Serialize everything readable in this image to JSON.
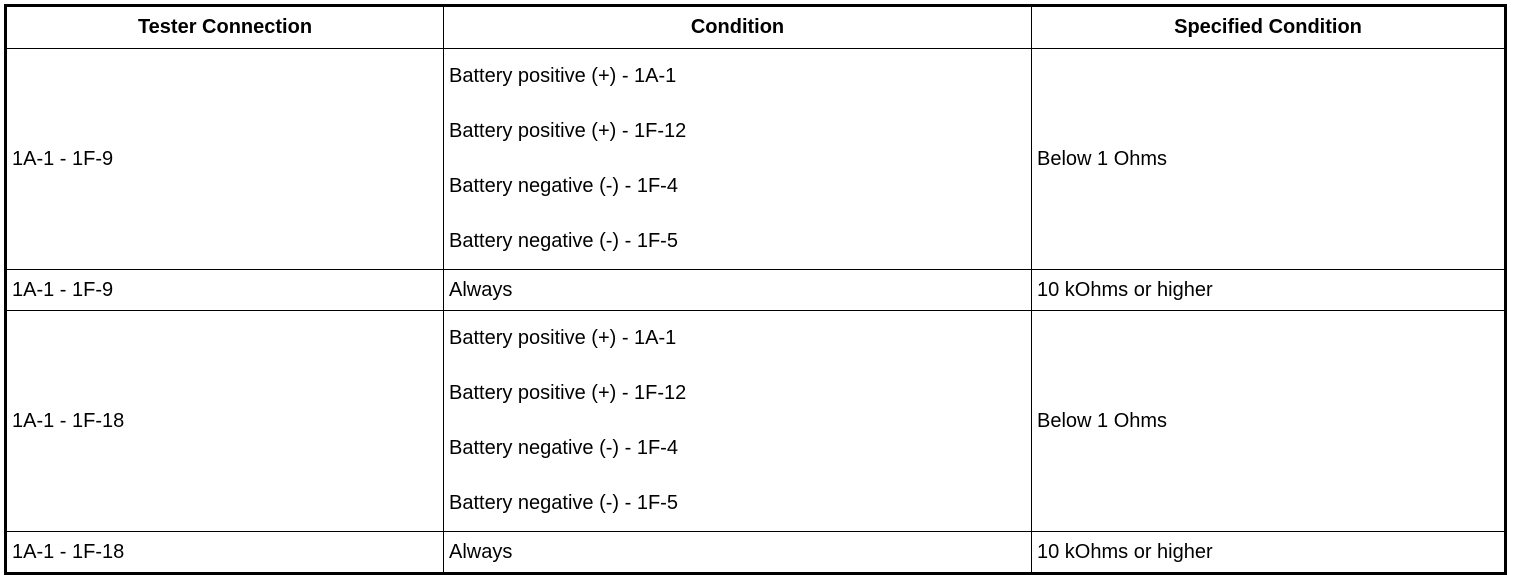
{
  "table": {
    "headers": [
      "Tester Connection",
      "Condition",
      "Specified Condition"
    ],
    "rows": [
      {
        "connection": "1A-1 - 1F-9",
        "conditions": [
          "Battery positive (+) - 1A-1",
          "Battery positive (+) - 1F-12",
          "Battery negative (-) - 1F-4",
          "Battery negative (-) - 1F-5"
        ],
        "specified": "Below 1 Ohms"
      },
      {
        "connection": "1A-1 - 1F-9",
        "conditions": [
          "Always"
        ],
        "specified": "10 kOhms or higher"
      },
      {
        "connection": "1A-1 - 1F-18",
        "conditions": [
          "Battery positive (+) - 1A-1",
          "Battery positive (+) - 1F-12",
          "Battery negative (-) - 1F-4",
          "Battery negative (-) - 1F-5"
        ],
        "specified": "Below 1 Ohms"
      },
      {
        "connection": "1A-1 - 1F-18",
        "conditions": [
          "Always"
        ],
        "specified": "10 kOhms or higher"
      }
    ]
  }
}
